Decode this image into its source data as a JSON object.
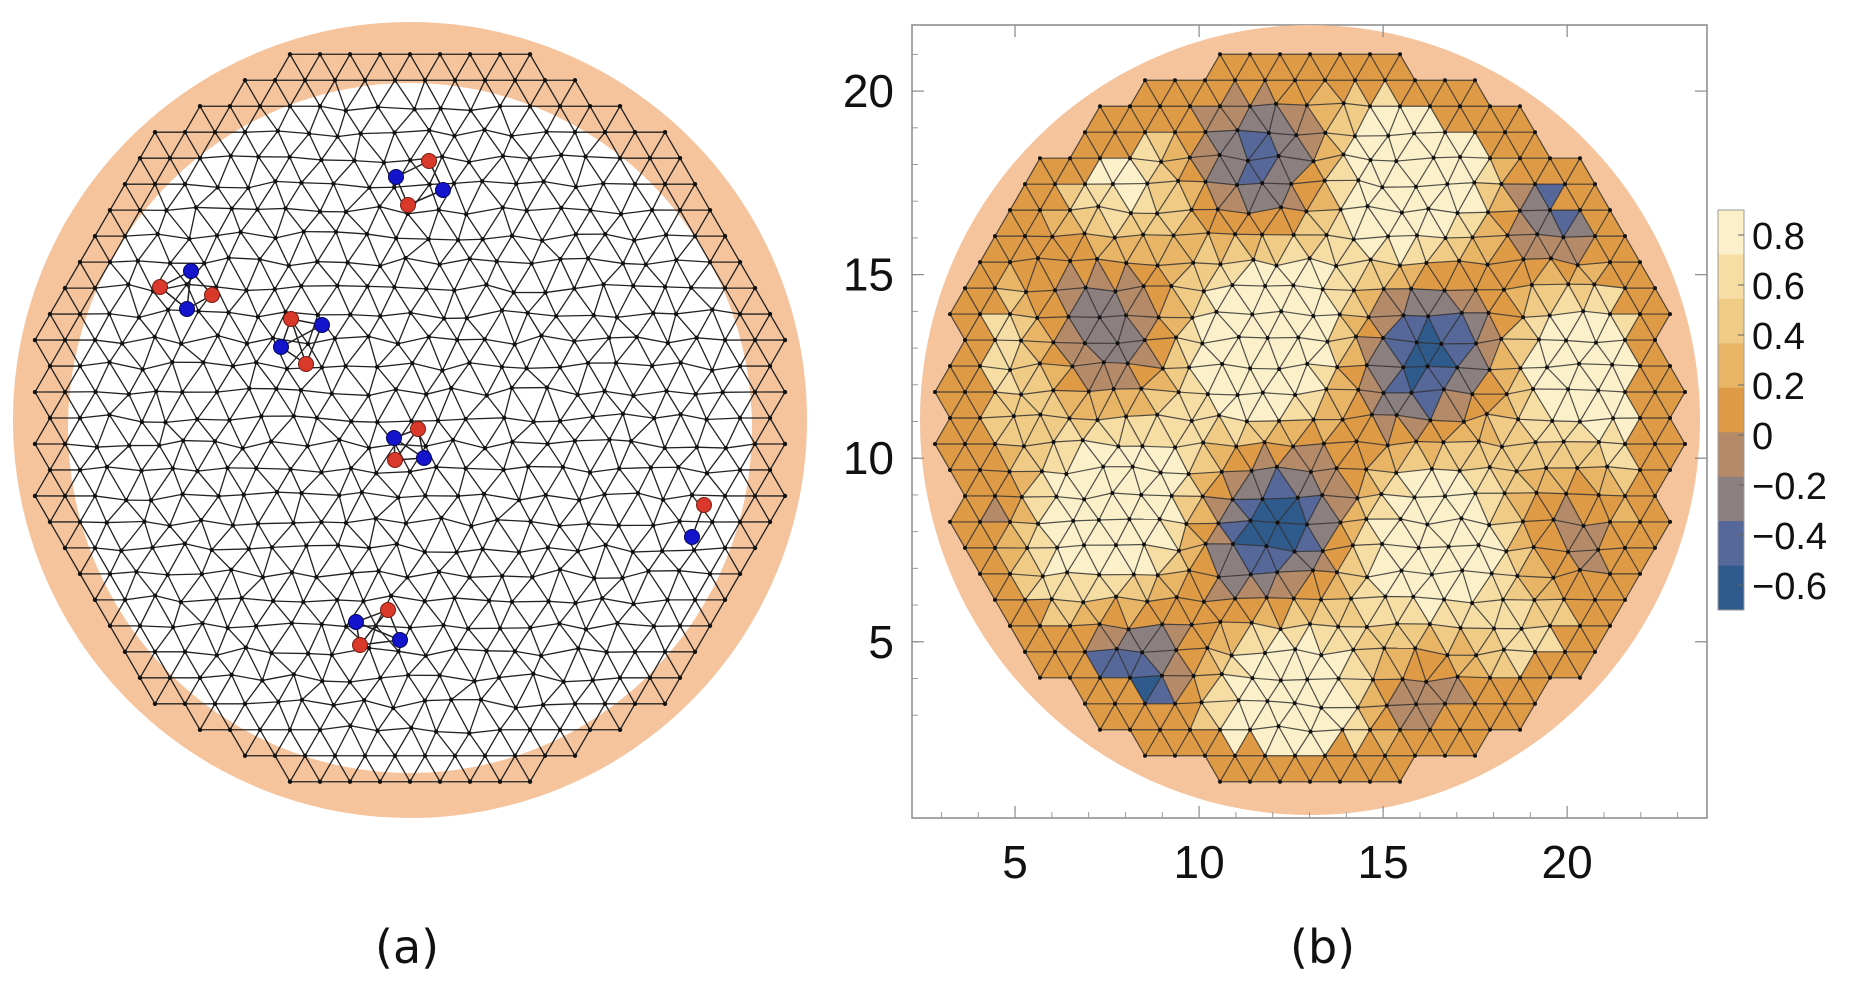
{
  "panels": {
    "a": {
      "label": "(a)"
    },
    "b": {
      "label": "(b)"
    }
  },
  "colors": {
    "disk": "#f5c39c",
    "mesh": "#222222",
    "defect_red": "#d9392b",
    "defect_blue": "#1414cc",
    "frame": "#888888"
  },
  "chart_data": [
    {
      "type": "mesh",
      "panel": "(a)",
      "description_note": "triangulated crystal on a disk; red = 7-fold, blue = 5-fold disclinations",
      "defect_pairs": [
        {
          "red": [
            [
              396,
              162
            ],
            [
              408,
              205
            ]
          ],
          "blue": [
            [
              401,
              178
            ],
            [
              443,
              190
            ]
          ]
        }
      ]
    },
    {
      "type": "heatmap",
      "panel": "(b)",
      "x_ticks": [
        "5",
        "10",
        "15",
        "20"
      ],
      "y_ticks": [
        "5",
        "10",
        "15",
        "20"
      ],
      "xlim": [
        2.2,
        23.8
      ],
      "ylim": [
        0.2,
        21.8
      ],
      "colorbar": {
        "ticks": [
          "0.8",
          "0.6",
          "0.4",
          "0.2",
          "0",
          "−0.2",
          "−0.4",
          "−0.6"
        ],
        "levels": [
          0.8,
          0.6,
          0.4,
          0.2,
          0.0,
          -0.2,
          -0.4,
          -0.6
        ],
        "range": [
          -0.7,
          0.9
        ],
        "bin_colors": [
          "#fbf0c9",
          "#f6dda4",
          "#f0cb86",
          "#e8b567",
          "#df9a45",
          "#b58a68",
          "#8c7f80",
          "#56689a",
          "#2f5a8c"
        ]
      }
    }
  ]
}
